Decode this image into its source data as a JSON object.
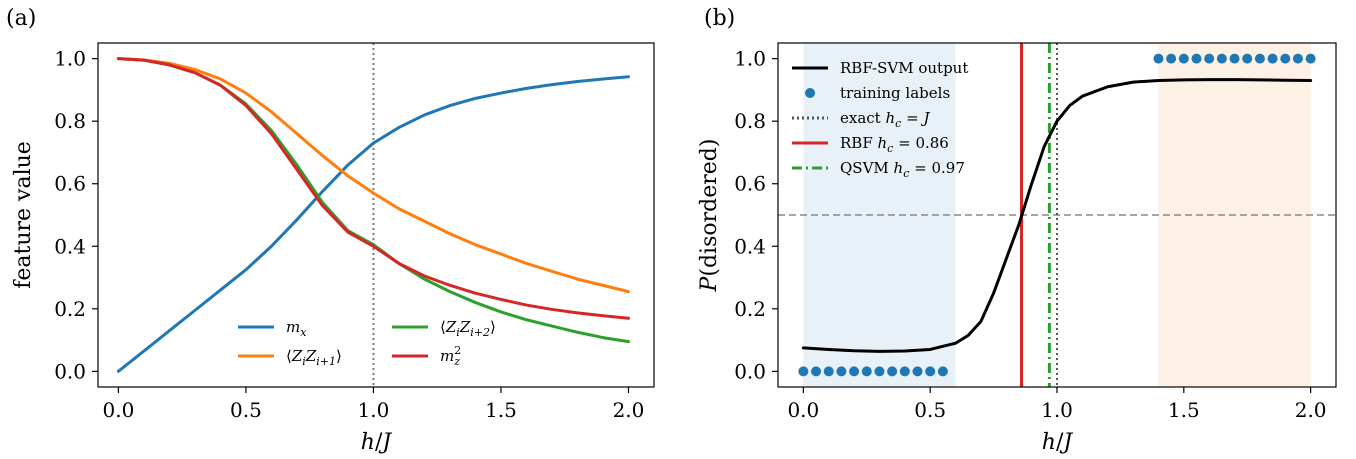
{
  "chart_data": [
    {
      "panel_label": "(a)",
      "type": "line",
      "xlabel": "h/J",
      "ylabel": "feature value",
      "xlim": [
        -0.08,
        2.1
      ],
      "ylim": [
        -0.05,
        1.05
      ],
      "xticks": [
        0.0,
        0.5,
        1.0,
        1.5,
        2.0
      ],
      "yticks": [
        0.0,
        0.2,
        0.4,
        0.6,
        0.8,
        1.0
      ],
      "xtick_labels": [
        "0.0",
        "0.5",
        "1.0",
        "1.5",
        "2.0"
      ],
      "ytick_labels": [
        "0.0",
        "0.2",
        "0.4",
        "0.6",
        "0.8",
        "1.0"
      ],
      "grid": false,
      "legend_position": "bottom-center",
      "x": [
        0.0,
        0.1,
        0.2,
        0.3,
        0.4,
        0.5,
        0.6,
        0.7,
        0.8,
        0.9,
        1.0,
        1.1,
        1.2,
        1.3,
        1.4,
        1.5,
        1.6,
        1.7,
        1.8,
        1.9,
        2.0
      ],
      "series": [
        {
          "name": "m_x",
          "label_main": "m",
          "label_sub": "x",
          "color": "#1f77b4",
          "values": [
            0.0,
            0.065,
            0.13,
            0.195,
            0.26,
            0.325,
            0.4,
            0.485,
            0.575,
            0.66,
            0.73,
            0.78,
            0.82,
            0.85,
            0.873,
            0.89,
            0.905,
            0.917,
            0.927,
            0.935,
            0.942
          ]
        },
        {
          "name": "⟨Z_i Z_{i+1}⟩",
          "label_main": "⟨Z",
          "label_sub": "i",
          "label_mid": "Z",
          "label_sub2": "i+1",
          "label_end": "⟩",
          "color": "#ff7f0e",
          "values": [
            1.0,
            0.996,
            0.985,
            0.965,
            0.935,
            0.89,
            0.83,
            0.76,
            0.69,
            0.625,
            0.57,
            0.52,
            0.48,
            0.44,
            0.405,
            0.375,
            0.345,
            0.32,
            0.295,
            0.275,
            0.255
          ]
        },
        {
          "name": "⟨Z_i Z_{i+2}⟩",
          "label_main": "⟨Z",
          "label_sub": "i",
          "label_mid": "Z",
          "label_sub2": "i+2",
          "label_end": "⟩",
          "color": "#2ca02c",
          "values": [
            1.0,
            0.995,
            0.98,
            0.955,
            0.915,
            0.855,
            0.77,
            0.66,
            0.54,
            0.45,
            0.405,
            0.345,
            0.295,
            0.255,
            0.22,
            0.19,
            0.165,
            0.145,
            0.125,
            0.108,
            0.095
          ]
        },
        {
          "name": "m_z^2",
          "label_main": "m",
          "label_sub": "z",
          "label_sup": "2",
          "color": "#d62728",
          "values": [
            1.0,
            0.995,
            0.98,
            0.955,
            0.915,
            0.85,
            0.76,
            0.645,
            0.53,
            0.445,
            0.4,
            0.345,
            0.305,
            0.275,
            0.25,
            0.23,
            0.212,
            0.198,
            0.187,
            0.178,
            0.17
          ]
        }
      ],
      "vlines": [
        {
          "x": 1.0,
          "style": "dotted",
          "color": "#777777"
        }
      ]
    },
    {
      "panel_label": "(b)",
      "type": "line",
      "xlabel": "h/J",
      "ylabel": "P(disordered)",
      "xlim": [
        -0.1,
        2.1
      ],
      "ylim": [
        -0.05,
        1.05
      ],
      "xticks": [
        0.0,
        0.5,
        1.0,
        1.5,
        2.0
      ],
      "yticks": [
        0.0,
        0.2,
        0.4,
        0.6,
        0.8,
        1.0
      ],
      "xtick_labels": [
        "0.0",
        "0.5",
        "1.0",
        "1.5",
        "2.0"
      ],
      "ytick_labels": [
        "0.0",
        "0.2",
        "0.4",
        "0.6",
        "0.8",
        "1.0"
      ],
      "grid": false,
      "legend_position": "top-left",
      "shaded_regions": [
        {
          "x0": 0.0,
          "x1": 0.6,
          "color": "#e8f0f8"
        },
        {
          "x0": 1.4,
          "x1": 2.0,
          "color": "#fdf0e4"
        }
      ],
      "hlines": [
        {
          "y": 0.5,
          "style": "dashed",
          "color": "#888888"
        }
      ],
      "series": [
        {
          "name": "RBF-SVM output",
          "color": "#000000",
          "x": [
            0.0,
            0.1,
            0.2,
            0.3,
            0.4,
            0.5,
            0.6,
            0.65,
            0.7,
            0.75,
            0.8,
            0.85,
            0.9,
            0.95,
            1.0,
            1.05,
            1.1,
            1.2,
            1.3,
            1.4,
            1.5,
            1.6,
            1.7,
            1.8,
            1.9,
            2.0
          ],
          "values": [
            0.075,
            0.07,
            0.066,
            0.064,
            0.065,
            0.07,
            0.09,
            0.115,
            0.16,
            0.25,
            0.36,
            0.47,
            0.6,
            0.72,
            0.8,
            0.85,
            0.88,
            0.91,
            0.925,
            0.93,
            0.932,
            0.933,
            0.933,
            0.932,
            0.931,
            0.93
          ]
        },
        {
          "name": "training labels",
          "color": "#1f77b4",
          "marker": "circle",
          "x": [
            0.0,
            0.05,
            0.1,
            0.15,
            0.2,
            0.25,
            0.3,
            0.35,
            0.4,
            0.45,
            0.5,
            0.55,
            1.4,
            1.45,
            1.5,
            1.55,
            1.6,
            1.65,
            1.7,
            1.75,
            1.8,
            1.85,
            1.9,
            1.95,
            2.0
          ],
          "values": [
            0,
            0,
            0,
            0,
            0,
            0,
            0,
            0,
            0,
            0,
            0,
            0,
            1,
            1,
            1,
            1,
            1,
            1,
            1,
            1,
            1,
            1,
            1,
            1,
            1
          ]
        }
      ],
      "vlines": [
        {
          "x": 1.0,
          "style": "dotted",
          "color": "#555555",
          "label_text": "exact ",
          "label_math": "h",
          "label_sub": "c",
          "label_tail": " = J"
        },
        {
          "x": 0.86,
          "style": "solid",
          "color": "#d62728",
          "label_text": "RBF ",
          "label_math": "h",
          "label_sub": "c",
          "label_tail": " = 0.86"
        },
        {
          "x": 0.97,
          "style": "dashdot",
          "color": "#2ca02c",
          "label_text": "QSVM ",
          "label_math": "h",
          "label_sub": "c",
          "label_tail": " = 0.97"
        }
      ]
    }
  ]
}
